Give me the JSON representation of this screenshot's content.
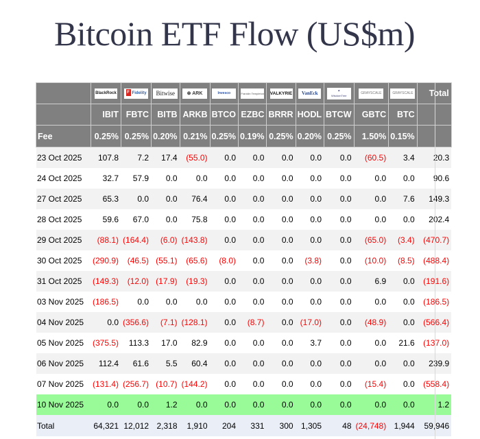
{
  "title": "Bitcoin ETF Flow (US$m)",
  "colors": {
    "header_bg": "#808080",
    "negative": "#ff0000",
    "latest_row": "#98fb98",
    "total_row": "#eaeef7",
    "title": "#33364a"
  },
  "header": {
    "fee_label": "Fee",
    "total_label": "Total",
    "funds": [
      {
        "issuer": "BlackRock",
        "ticker": "IBIT",
        "fee": "0.25%"
      },
      {
        "issuer": "Fidelity",
        "ticker": "FBTC",
        "fee": "0.25%"
      },
      {
        "issuer": "Bitwise",
        "ticker": "BITB",
        "fee": "0.20%"
      },
      {
        "issuer": "ARK INVEST",
        "ticker": "ARKB",
        "fee": "0.21%"
      },
      {
        "issuer": "Invesco",
        "ticker": "BTCO",
        "fee": "0.25%"
      },
      {
        "issuer": "Franklin Templeton",
        "ticker": "EZBC",
        "fee": "0.19%"
      },
      {
        "issuer": "VALKYRIE",
        "ticker": "BRRR",
        "fee": "0.25%"
      },
      {
        "issuer": "VanEck",
        "ticker": "HODL",
        "fee": "0.20%"
      },
      {
        "issuer": "WisdomTree",
        "ticker": "BTCW",
        "fee": "0.25%"
      },
      {
        "issuer": "GRAYSCALE",
        "ticker": "GBTC",
        "fee": "1.50%"
      },
      {
        "issuer": "GRAYSCALE",
        "ticker": "BTC",
        "fee": "0.15%"
      }
    ]
  },
  "rows": [
    {
      "date": "23 Oct 2025",
      "values": [
        "107.8",
        "7.2",
        "17.4",
        "(55.0)",
        "0.0",
        "0.0",
        "0.0",
        "0.0",
        "0.0",
        "(60.5)",
        "3.4"
      ],
      "total": "20.3"
    },
    {
      "date": "24 Oct 2025",
      "values": [
        "32.7",
        "57.9",
        "0.0",
        "0.0",
        "0.0",
        "0.0",
        "0.0",
        "0.0",
        "0.0",
        "0.0",
        "0.0"
      ],
      "total": "90.6"
    },
    {
      "date": "27 Oct 2025",
      "values": [
        "65.3",
        "0.0",
        "0.0",
        "76.4",
        "0.0",
        "0.0",
        "0.0",
        "0.0",
        "0.0",
        "0.0",
        "7.6"
      ],
      "total": "149.3"
    },
    {
      "date": "28 Oct 2025",
      "values": [
        "59.6",
        "67.0",
        "0.0",
        "75.8",
        "0.0",
        "0.0",
        "0.0",
        "0.0",
        "0.0",
        "0.0",
        "0.0"
      ],
      "total": "202.4"
    },
    {
      "date": "29 Oct 2025",
      "values": [
        "(88.1)",
        "(164.4)",
        "(6.0)",
        "(143.8)",
        "0.0",
        "0.0",
        "0.0",
        "0.0",
        "0.0",
        "(65.0)",
        "(3.4)"
      ],
      "total": "(470.7)"
    },
    {
      "date": "30 Oct 2025",
      "values": [
        "(290.9)",
        "(46.5)",
        "(55.1)",
        "(65.6)",
        "(8.0)",
        "0.0",
        "0.0",
        "(3.8)",
        "0.0",
        "(10.0)",
        "(8.5)"
      ],
      "total": "(488.4)"
    },
    {
      "date": "31 Oct 2025",
      "values": [
        "(149.3)",
        "(12.0)",
        "(17.9)",
        "(19.3)",
        "0.0",
        "0.0",
        "0.0",
        "0.0",
        "0.0",
        "6.9",
        "0.0"
      ],
      "total": "(191.6)"
    },
    {
      "date": "03 Nov 2025",
      "values": [
        "(186.5)",
        "0.0",
        "0.0",
        "0.0",
        "0.0",
        "0.0",
        "0.0",
        "0.0",
        "0.0",
        "0.0",
        "0.0"
      ],
      "total": "(186.5)"
    },
    {
      "date": "04 Nov 2025",
      "values": [
        "0.0",
        "(356.6)",
        "(7.1)",
        "(128.1)",
        "0.0",
        "(8.7)",
        "0.0",
        "(17.0)",
        "0.0",
        "(48.9)",
        "0.0"
      ],
      "total": "(566.4)"
    },
    {
      "date": "05 Nov 2025",
      "values": [
        "(375.5)",
        "113.3",
        "17.0",
        "82.9",
        "0.0",
        "0.0",
        "0.0",
        "3.7",
        "0.0",
        "0.0",
        "21.6"
      ],
      "total": "(137.0)"
    },
    {
      "date": "06 Nov 2025",
      "values": [
        "112.4",
        "61.6",
        "5.5",
        "60.4",
        "0.0",
        "0.0",
        "0.0",
        "0.0",
        "0.0",
        "0.0",
        "0.0"
      ],
      "total": "239.9"
    },
    {
      "date": "07 Nov 2025",
      "values": [
        "(131.4)",
        "(256.7)",
        "(10.7)",
        "(144.2)",
        "0.0",
        "0.0",
        "0.0",
        "0.0",
        "0.0",
        "(15.4)",
        "0.0"
      ],
      "total": "(558.4)"
    },
    {
      "date": "10 Nov 2025",
      "values": [
        "0.0",
        "0.0",
        "1.2",
        "0.0",
        "0.0",
        "0.0",
        "0.0",
        "0.0",
        "0.0",
        "0.0",
        "0.0"
      ],
      "total": "1.2",
      "highlight": true
    }
  ],
  "totals": {
    "label": "Total",
    "values": [
      "64,321",
      "12,012",
      "2,318",
      "1,910",
      "204",
      "331",
      "300",
      "1,305",
      "48",
      "(24,748)",
      "1,944"
    ],
    "total": "59,946"
  }
}
